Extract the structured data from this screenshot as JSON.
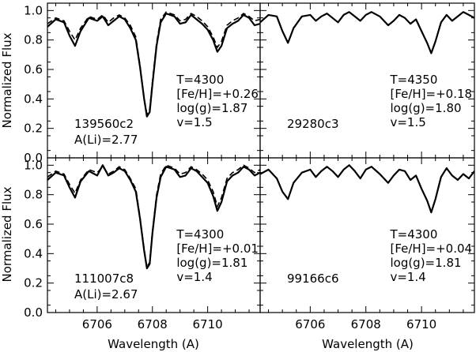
{
  "chart_data": {
    "type": "line",
    "x_label": "Wavelength (A)",
    "y_label": "Normalized Flux",
    "xlim": [
      6704.2,
      6711.9
    ],
    "ylim": [
      0.0,
      1.05
    ],
    "x_ticks": [
      6706,
      6708,
      6710
    ],
    "y_ticks": [
      0.0,
      0.2,
      0.4,
      0.6,
      0.8,
      1.0
    ],
    "panels": [
      {
        "id": "139560c2",
        "star": "139560c2",
        "abundance": "A(Li)=2.77",
        "params": [
          "T=4300",
          "[Fe/H]=+0.26",
          "log(g)=1.87",
          "v=1.5"
        ],
        "observed": {
          "x": [
            6704.2,
            6704.5,
            6704.8,
            6705.0,
            6705.2,
            6705.4,
            6705.7,
            6706.0,
            6706.2,
            6706.4,
            6706.6,
            6706.8,
            6707.0,
            6707.2,
            6707.4,
            6707.55,
            6707.7,
            6707.8,
            6707.9,
            6708.0,
            6708.15,
            6708.3,
            6708.5,
            6708.8,
            6709.0,
            6709.2,
            6709.4,
            6709.6,
            6709.8,
            6710.0,
            6710.2,
            6710.35,
            6710.5,
            6710.7,
            6710.9,
            6711.1,
            6711.3,
            6711.5,
            6711.7,
            6711.9
          ],
          "y": [
            0.89,
            0.94,
            0.92,
            0.83,
            0.76,
            0.86,
            0.95,
            0.93,
            0.96,
            0.9,
            0.93,
            0.96,
            0.94,
            0.88,
            0.8,
            0.62,
            0.4,
            0.28,
            0.31,
            0.5,
            0.76,
            0.92,
            0.98,
            0.96,
            0.91,
            0.92,
            0.97,
            0.94,
            0.91,
            0.87,
            0.8,
            0.72,
            0.76,
            0.88,
            0.91,
            0.93,
            0.97,
            0.95,
            0.9,
            0.91
          ]
        },
        "model": {
          "x": [
            6704.2,
            6704.5,
            6704.8,
            6705.0,
            6705.2,
            6705.4,
            6705.7,
            6706.0,
            6706.2,
            6706.4,
            6706.6,
            6706.8,
            6707.0,
            6707.2,
            6707.4,
            6707.55,
            6707.7,
            6707.8,
            6707.9,
            6708.0,
            6708.15,
            6708.3,
            6708.5,
            6708.8,
            6709.0,
            6709.2,
            6709.4,
            6709.6,
            6709.8,
            6710.0,
            6710.2,
            6710.35,
            6710.5,
            6710.7,
            6710.9,
            6711.1,
            6711.3,
            6711.5,
            6711.7,
            6711.9
          ],
          "y": [
            0.91,
            0.95,
            0.93,
            0.86,
            0.8,
            0.88,
            0.96,
            0.94,
            0.97,
            0.92,
            0.95,
            0.97,
            0.95,
            0.9,
            0.82,
            0.63,
            0.4,
            0.3,
            0.33,
            0.52,
            0.78,
            0.94,
            0.99,
            0.97,
            0.93,
            0.94,
            0.98,
            0.96,
            0.93,
            0.89,
            0.82,
            0.75,
            0.79,
            0.9,
            0.93,
            0.95,
            0.98,
            0.96,
            0.93,
            0.94
          ]
        }
      },
      {
        "id": "29280c3",
        "star": "29280c3",
        "abundance": "",
        "params": [
          "T=4350",
          "[Fe/H]=+0.18",
          "log(g)=1.80",
          "v=1.5"
        ],
        "observed": {
          "x": [
            6704.2,
            6704.5,
            6704.8,
            6705.0,
            6705.2,
            6705.4,
            6705.7,
            6706.0,
            6706.2,
            6706.4,
            6706.6,
            6706.8,
            6707.0,
            6707.2,
            6707.4,
            6707.6,
            6707.8,
            6708.0,
            6708.2,
            6708.5,
            6708.8,
            6709.0,
            6709.2,
            6709.4,
            6709.6,
            6709.8,
            6710.0,
            6710.2,
            6710.35,
            6710.5,
            6710.7,
            6710.9,
            6711.1,
            6711.3,
            6711.5,
            6711.7,
            6711.9
          ],
          "y": [
            0.92,
            0.97,
            0.96,
            0.86,
            0.78,
            0.88,
            0.96,
            0.97,
            0.93,
            0.96,
            0.98,
            0.95,
            0.92,
            0.97,
            0.99,
            0.96,
            0.93,
            0.97,
            0.99,
            0.96,
            0.9,
            0.93,
            0.97,
            0.95,
            0.91,
            0.94,
            0.86,
            0.78,
            0.71,
            0.79,
            0.92,
            0.97,
            0.93,
            0.96,
            0.99,
            0.97,
            0.95
          ]
        },
        "model": null
      },
      {
        "id": "111007c8",
        "star": "111007c8",
        "abundance": "A(Li)=2.67",
        "params": [
          "T=4300",
          "[Fe/H]=+0.01",
          "log(g)=1.81",
          "v=1.4"
        ],
        "observed": {
          "x": [
            6704.2,
            6704.5,
            6704.8,
            6705.0,
            6705.2,
            6705.4,
            6705.7,
            6706.0,
            6706.2,
            6706.4,
            6706.6,
            6706.8,
            6707.0,
            6707.2,
            6707.4,
            6707.55,
            6707.7,
            6707.8,
            6707.9,
            6708.0,
            6708.15,
            6708.3,
            6708.5,
            6708.8,
            6709.0,
            6709.2,
            6709.4,
            6709.6,
            6709.8,
            6710.0,
            6710.2,
            6710.35,
            6710.5,
            6710.7,
            6710.9,
            6711.1,
            6711.3,
            6711.5,
            6711.7,
            6711.9
          ],
          "y": [
            0.9,
            0.95,
            0.93,
            0.85,
            0.78,
            0.89,
            0.96,
            0.93,
            1.0,
            0.93,
            0.95,
            0.98,
            0.96,
            0.9,
            0.82,
            0.64,
            0.42,
            0.3,
            0.33,
            0.54,
            0.78,
            0.92,
            0.99,
            0.97,
            0.92,
            0.93,
            0.98,
            0.96,
            0.92,
            0.88,
            0.79,
            0.69,
            0.75,
            0.89,
            0.93,
            0.95,
            0.99,
            0.97,
            0.93,
            0.95
          ]
        },
        "model": {
          "x": [
            6704.2,
            6704.5,
            6704.8,
            6705.0,
            6705.2,
            6705.4,
            6705.7,
            6706.0,
            6706.2,
            6706.4,
            6706.6,
            6706.8,
            6707.0,
            6707.2,
            6707.4,
            6707.55,
            6707.7,
            6707.8,
            6707.9,
            6708.0,
            6708.15,
            6708.3,
            6708.5,
            6708.8,
            6709.0,
            6709.2,
            6709.4,
            6709.6,
            6709.8,
            6710.0,
            6710.2,
            6710.35,
            6710.5,
            6710.7,
            6710.9,
            6711.1,
            6711.3,
            6711.5,
            6711.7,
            6711.9
          ],
          "y": [
            0.92,
            0.96,
            0.94,
            0.87,
            0.81,
            0.9,
            0.97,
            0.95,
            0.99,
            0.94,
            0.96,
            0.99,
            0.97,
            0.91,
            0.84,
            0.65,
            0.43,
            0.31,
            0.34,
            0.55,
            0.8,
            0.94,
            1.0,
            0.98,
            0.94,
            0.95,
            0.99,
            0.97,
            0.94,
            0.9,
            0.82,
            0.72,
            0.78,
            0.91,
            0.95,
            0.97,
            1.0,
            0.98,
            0.95,
            0.97
          ]
        }
      },
      {
        "id": "99166c6",
        "star": "99166c6",
        "abundance": "",
        "params": [
          "T=4300",
          "[Fe/H]=+0.04",
          "log(g)=1.81",
          "v=1.4"
        ],
        "observed": {
          "x": [
            6704.2,
            6704.5,
            6704.8,
            6705.0,
            6705.2,
            6705.4,
            6705.7,
            6706.0,
            6706.2,
            6706.4,
            6706.6,
            6706.8,
            6707.0,
            6707.2,
            6707.4,
            6707.6,
            6707.8,
            6708.0,
            6708.2,
            6708.5,
            6708.8,
            6709.0,
            6709.2,
            6709.4,
            6709.6,
            6709.8,
            6710.0,
            6710.2,
            6710.35,
            6710.5,
            6710.7,
            6710.9,
            6711.1,
            6711.3,
            6711.5,
            6711.7,
            6711.9
          ],
          "y": [
            0.94,
            0.97,
            0.91,
            0.82,
            0.77,
            0.88,
            0.95,
            0.97,
            0.92,
            0.96,
            0.99,
            0.96,
            0.92,
            0.97,
            1.0,
            0.96,
            0.91,
            0.97,
            0.99,
            0.94,
            0.88,
            0.93,
            0.97,
            0.96,
            0.9,
            0.93,
            0.84,
            0.76,
            0.68,
            0.77,
            0.92,
            0.98,
            0.93,
            0.9,
            0.94,
            0.91,
            0.96
          ]
        },
        "model": null
      }
    ]
  }
}
